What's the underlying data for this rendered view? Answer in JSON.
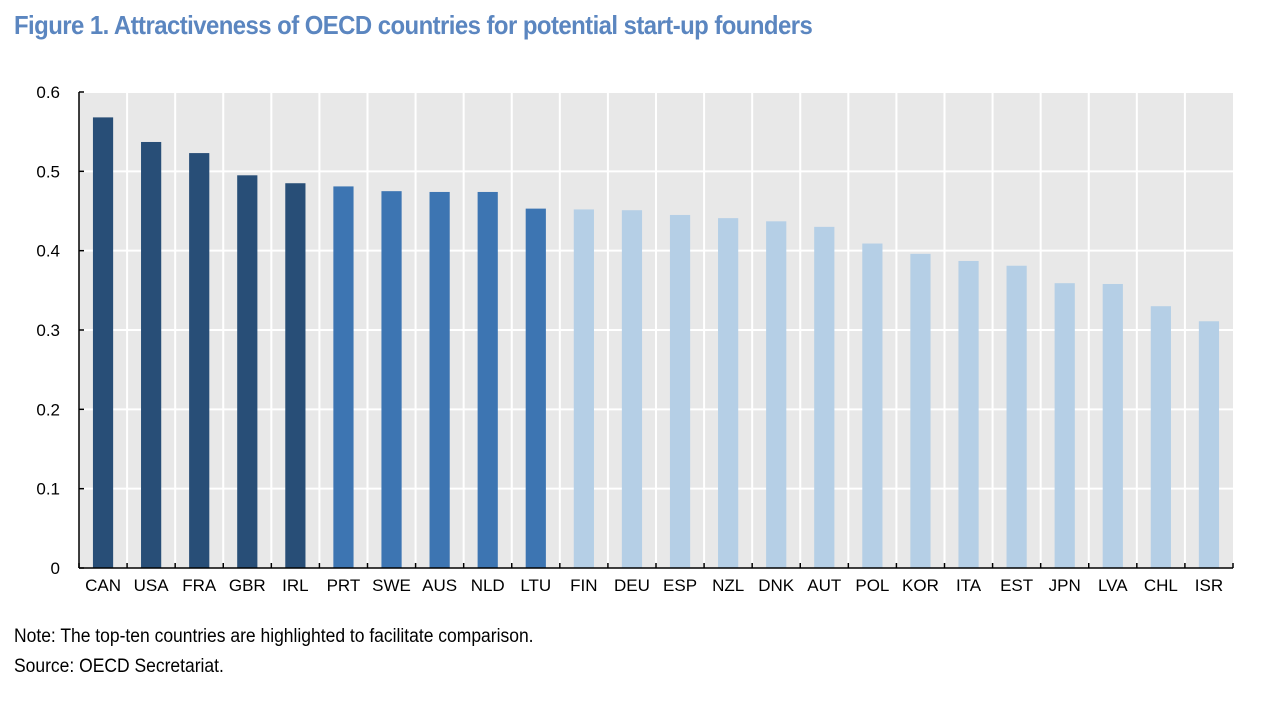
{
  "title": "Figure 1. Attractiveness of OECD countries for potential start-up founders",
  "note": "Note: The top-ten countries are highlighted to facilitate comparison.",
  "source": "Source: OECD Secretariat.",
  "colors": {
    "title": "#5b86c0",
    "top5": "#284e77",
    "top6_10": "#3d75b2",
    "rest": "#b5cfe6",
    "plot_bg": "#e8e8e8",
    "grid": "#ffffff",
    "axis": "#000000"
  },
  "chart_data": {
    "type": "bar",
    "title": "Figure 1. Attractiveness of OECD countries for potential start-up founders",
    "xlabel": "",
    "ylabel": "",
    "ylim": [
      0,
      0.6
    ],
    "yticks": [
      0,
      0.1,
      0.2,
      0.3,
      0.4,
      0.5,
      0.6
    ],
    "ytick_labels": [
      "0",
      "0.1",
      "0.2",
      "0.3",
      "0.4",
      "0.5",
      "0.6"
    ],
    "grid": true,
    "legend": "none",
    "categories": [
      "CAN",
      "USA",
      "FRA",
      "GBR",
      "IRL",
      "PRT",
      "SWE",
      "AUS",
      "NLD",
      "LTU",
      "FIN",
      "DEU",
      "ESP",
      "NZL",
      "DNK",
      "AUT",
      "POL",
      "KOR",
      "ITA",
      "EST",
      "JPN",
      "LVA",
      "CHL",
      "ISR"
    ],
    "values": [
      0.568,
      0.537,
      0.523,
      0.495,
      0.485,
      0.481,
      0.475,
      0.474,
      0.474,
      0.453,
      0.452,
      0.451,
      0.445,
      0.441,
      0.437,
      0.43,
      0.409,
      0.396,
      0.387,
      0.381,
      0.359,
      0.358,
      0.33,
      0.311
    ],
    "highlight_groups": [
      "top5",
      "top5",
      "top5",
      "top5",
      "top5",
      "top6_10",
      "top6_10",
      "top6_10",
      "top6_10",
      "top6_10",
      "rest",
      "rest",
      "rest",
      "rest",
      "rest",
      "rest",
      "rest",
      "rest",
      "rest",
      "rest",
      "rest",
      "rest",
      "rest",
      "rest"
    ]
  }
}
